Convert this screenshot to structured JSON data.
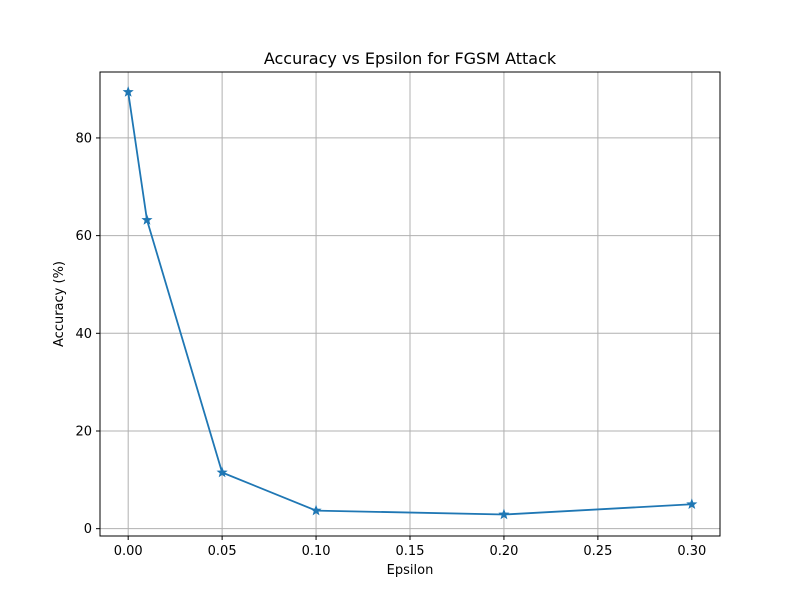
{
  "chart_data": {
    "type": "line",
    "title": "Accuracy vs Epsilon for FGSM Attack",
    "xlabel": "Epsilon",
    "ylabel": "Accuracy (%)",
    "x": [
      0.0,
      0.01,
      0.05,
      0.1,
      0.2,
      0.3
    ],
    "series": [
      {
        "values": [
          89.4,
          63.2,
          11.5,
          3.7,
          2.9,
          5.0
        ]
      }
    ],
    "xlim": [
      -0.015,
      0.315
    ],
    "ylim": [
      -1.5,
      93.5
    ],
    "xticks": [
      0.0,
      0.05,
      0.1,
      0.15,
      0.2,
      0.25,
      0.3
    ],
    "xtick_labels": [
      "0.00",
      "0.05",
      "0.10",
      "0.15",
      "0.20",
      "0.25",
      "0.30"
    ],
    "yticks": [
      0,
      20,
      40,
      60,
      80
    ],
    "ytick_labels": [
      "0",
      "20",
      "40",
      "60",
      "80"
    ],
    "grid": true,
    "marker": "star",
    "line_color": "#1f77b4",
    "grid_color": "#b0b0b0"
  }
}
